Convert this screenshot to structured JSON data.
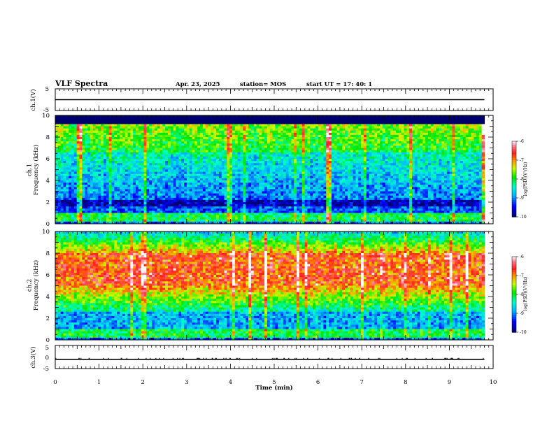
{
  "header": {
    "title": "VLF Spectra",
    "date": "Apr. 23, 2025",
    "station": "station= MOS",
    "start_ut": "start UT =   17: 40: 1"
  },
  "chart_data": [
    {
      "type": "line",
      "panel": "ch1-waveform",
      "ylabel": "ch.1(V)",
      "ylim": [
        -5,
        5
      ],
      "yticks": [
        "5",
        "-5"
      ],
      "xlim": [
        0,
        10
      ],
      "series": [
        {
          "x": [
            0,
            9.8
          ],
          "y": [
            0,
            0
          ]
        }
      ]
    },
    {
      "type": "heatmap",
      "panel": "ch1-spectrogram",
      "ylabel": "ch.1\nFrequency (kHz)",
      "ylim": [
        0,
        10
      ],
      "yticks": [
        "0",
        "2",
        "4",
        "6",
        "8",
        "10"
      ],
      "xlim": [
        0,
        10
      ],
      "data_xmax": 9.8,
      "colorbar": {
        "label": "log(PSD)(V²/Hz)",
        "ticks": [
          "-6",
          "-7",
          "-8",
          "-9",
          "-10"
        ],
        "range": [
          -10,
          -6
        ]
      },
      "profile": {
        "low_band_kHz": [
          0.3,
          1.0
        ],
        "body_level": -8.6,
        "top_level": -8.2,
        "cutoff_kHz": 9.2
      }
    },
    {
      "type": "heatmap",
      "panel": "ch2-spectrogram",
      "ylabel": "ch.2\nFrequency (kHz)",
      "ylim": [
        0,
        10
      ],
      "yticks": [
        "0",
        "2",
        "4",
        "6",
        "8",
        "10"
      ],
      "xlim": [
        0,
        10
      ],
      "data_xmax": 9.8,
      "colorbar": {
        "label": "log(PSD)(V²/Hz)",
        "ticks": [
          "-6",
          "-7",
          "-8",
          "-9",
          "-10"
        ],
        "range": [
          -10,
          -6
        ]
      },
      "profile": {
        "peak_band_kHz": [
          5,
          8
        ],
        "peak_level": -6.9,
        "low_level": -9.0,
        "top_level": -8.3
      }
    },
    {
      "type": "line",
      "panel": "ch3-waveform",
      "ylabel": "ch.3(V)",
      "ylim": [
        -5,
        5
      ],
      "yticks": [
        "5",
        "0",
        "-5"
      ],
      "xlim": [
        0,
        10
      ],
      "series": [
        {
          "x": [
            0,
            9.8
          ],
          "y": [
            -1,
            -1
          ]
        }
      ]
    }
  ],
  "xaxis": {
    "label": "Time (min)",
    "ticks": [
      "0",
      "1",
      "2",
      "3",
      "4",
      "5",
      "6",
      "7",
      "8",
      "9",
      "10"
    ]
  }
}
